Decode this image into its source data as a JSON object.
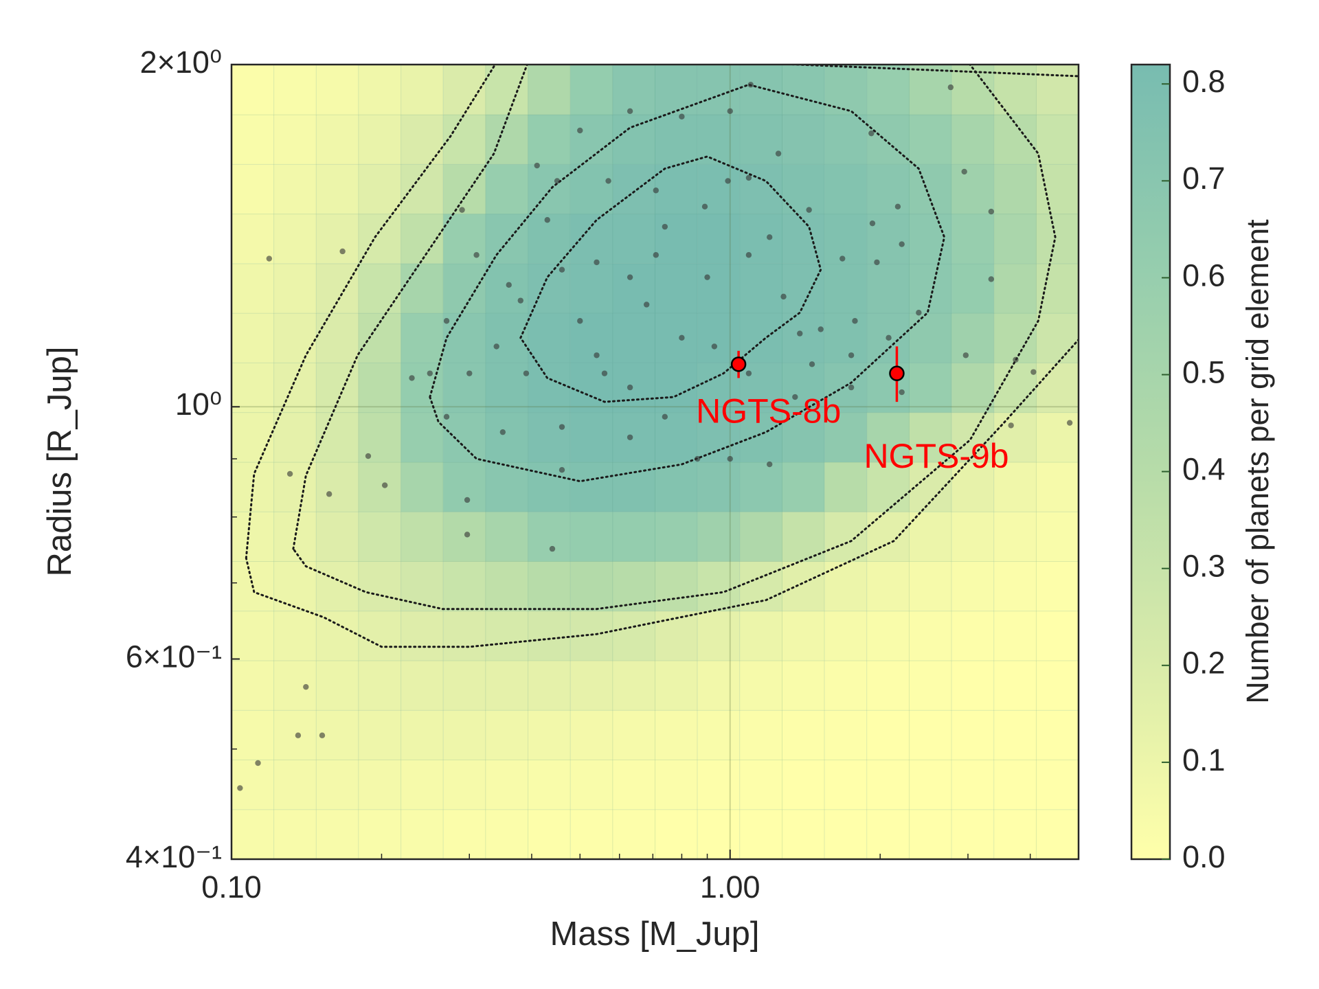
{
  "chart_data": {
    "type": "heatmap",
    "x_label": "Mass [M_Jup]",
    "y_label": "Radius [R_Jup]",
    "colorbar_label": "Number of planets per grid element",
    "log_x": true,
    "log_y": true,
    "grid": true,
    "xlim": [
      0.1,
      5.0
    ],
    "ylim": [
      0.4,
      2.0
    ],
    "xticks": [
      {
        "value": 0.1,
        "label": "0.10"
      },
      {
        "value": 1,
        "label": "1.00"
      }
    ],
    "yticks": [
      {
        "value": 0.4,
        "label": "4×10⁻¹"
      },
      {
        "value": 0.6,
        "label": "6×10⁻¹"
      },
      {
        "value": 1,
        "label": "10⁰"
      },
      {
        "value": 2,
        "label": "2×10⁰"
      }
    ],
    "xminorticks": [
      0.2,
      0.3,
      0.4,
      0.5,
      0.6,
      0.7,
      0.8,
      0.9,
      2,
      3,
      4
    ],
    "yminorticks": [
      0.5,
      0.7,
      0.8,
      0.9
    ],
    "x_bins": [
      0.1,
      0.1216,
      0.1479,
      0.1798,
      0.2187,
      0.2659,
      0.3234,
      0.3933,
      0.4783,
      0.5817,
      0.7071,
      0.8599,
      1.0457,
      1.2717,
      1.5465,
      1.8807,
      2.2871,
      2.7813,
      3.3823,
      4.1132,
      5.0
    ],
    "y_bins": [
      0.4,
      0.4423,
      0.4891,
      0.5408,
      0.598,
      0.6612,
      0.7311,
      0.8084,
      0.8939,
      0.9885,
      1.093,
      1.2086,
      1.3364,
      1.4777,
      1.634,
      1.8068,
      2.0
    ],
    "z": [
      [
        0.04,
        0.04,
        0.04,
        0.03,
        0.03,
        0.02,
        0.02,
        0.01,
        0.01,
        0.01,
        0.0,
        0.0,
        0.0,
        0.0,
        0.0,
        0.0,
        0.0,
        0.0,
        0.0,
        0.0
      ],
      [
        0.05,
        0.06,
        0.06,
        0.06,
        0.05,
        0.05,
        0.04,
        0.03,
        0.03,
        0.02,
        0.02,
        0.01,
        0.01,
        0.0,
        0.0,
        0.0,
        0.0,
        0.0,
        0.0,
        0.0
      ],
      [
        0.05,
        0.07,
        0.08,
        0.09,
        0.09,
        0.09,
        0.08,
        0.07,
        0.06,
        0.05,
        0.04,
        0.03,
        0.02,
        0.01,
        0.01,
        0.0,
        0.0,
        0.0,
        0.0,
        0.0
      ],
      [
        0.06,
        0.08,
        0.1,
        0.12,
        0.13,
        0.14,
        0.14,
        0.14,
        0.13,
        0.12,
        0.1,
        0.07,
        0.05,
        0.03,
        0.02,
        0.01,
        0.01,
        0.0,
        0.0,
        0.0
      ],
      [
        0.07,
        0.09,
        0.12,
        0.15,
        0.18,
        0.2,
        0.22,
        0.24,
        0.24,
        0.22,
        0.18,
        0.14,
        0.1,
        0.07,
        0.05,
        0.03,
        0.02,
        0.01,
        0.01,
        0.0
      ],
      [
        0.08,
        0.1,
        0.15,
        0.2,
        0.25,
        0.3,
        0.35,
        0.4,
        0.42,
        0.4,
        0.36,
        0.3,
        0.22,
        0.16,
        0.1,
        0.07,
        0.05,
        0.03,
        0.02,
        0.01
      ],
      [
        0.09,
        0.12,
        0.18,
        0.26,
        0.35,
        0.42,
        0.5,
        0.6,
        0.62,
        0.62,
        0.6,
        0.55,
        0.45,
        0.32,
        0.22,
        0.15,
        0.1,
        0.07,
        0.05,
        0.03
      ],
      [
        0.1,
        0.13,
        0.2,
        0.32,
        0.5,
        0.64,
        0.7,
        0.74,
        0.76,
        0.76,
        0.74,
        0.72,
        0.68,
        0.6,
        0.4,
        0.3,
        0.2,
        0.13,
        0.08,
        0.05
      ],
      [
        0.1,
        0.14,
        0.22,
        0.36,
        0.6,
        0.68,
        0.74,
        0.78,
        0.8,
        0.8,
        0.8,
        0.78,
        0.76,
        0.72,
        0.66,
        0.5,
        0.35,
        0.25,
        0.16,
        0.1
      ],
      [
        0.1,
        0.14,
        0.22,
        0.38,
        0.62,
        0.7,
        0.76,
        0.8,
        0.82,
        0.82,
        0.82,
        0.8,
        0.78,
        0.76,
        0.72,
        0.68,
        0.6,
        0.45,
        0.3,
        0.2
      ],
      [
        0.09,
        0.13,
        0.2,
        0.35,
        0.6,
        0.7,
        0.76,
        0.8,
        0.82,
        0.82,
        0.82,
        0.82,
        0.8,
        0.78,
        0.76,
        0.72,
        0.66,
        0.55,
        0.4,
        0.28
      ],
      [
        0.08,
        0.11,
        0.18,
        0.3,
        0.5,
        0.66,
        0.74,
        0.78,
        0.8,
        0.82,
        0.82,
        0.82,
        0.8,
        0.78,
        0.76,
        0.72,
        0.68,
        0.62,
        0.45,
        0.32
      ],
      [
        0.06,
        0.09,
        0.14,
        0.22,
        0.35,
        0.6,
        0.7,
        0.76,
        0.79,
        0.8,
        0.82,
        0.82,
        0.8,
        0.78,
        0.76,
        0.72,
        0.68,
        0.6,
        0.48,
        0.34
      ],
      [
        0.04,
        0.07,
        0.1,
        0.16,
        0.25,
        0.4,
        0.6,
        0.7,
        0.74,
        0.78,
        0.8,
        0.8,
        0.78,
        0.76,
        0.74,
        0.7,
        0.66,
        0.55,
        0.45,
        0.32
      ],
      [
        0.03,
        0.05,
        0.08,
        0.12,
        0.2,
        0.3,
        0.45,
        0.62,
        0.7,
        0.74,
        0.76,
        0.76,
        0.75,
        0.73,
        0.7,
        0.66,
        0.6,
        0.5,
        0.4,
        0.3
      ],
      [
        0.02,
        0.03,
        0.05,
        0.08,
        0.12,
        0.2,
        0.3,
        0.45,
        0.62,
        0.7,
        0.72,
        0.72,
        0.72,
        0.7,
        0.66,
        0.6,
        0.5,
        0.4,
        0.32,
        0.25
      ]
    ],
    "colormap": [
      "#ffffaa",
      "#d9ebaa",
      "#b5dba9",
      "#95cdae",
      "#78bcb0"
    ],
    "clim": [
      0,
      0.82
    ],
    "colorbar_ticks": [
      {
        "value": 0,
        "label": "0.0"
      },
      0.1,
      0.2,
      0.3,
      0.4,
      0.5,
      0.6,
      0.7,
      0.8
    ],
    "contours": [
      {
        "x": [
          0.38,
          0.43,
          0.54,
          0.74,
          0.9,
          1.18,
          1.44,
          1.52,
          1.38,
          1.18,
          0.97,
          0.77,
          0.56,
          0.43,
          0.38
        ],
        "y": [
          1.15,
          1.3,
          1.46,
          1.62,
          1.66,
          1.58,
          1.44,
          1.32,
          1.21,
          1.15,
          1.07,
          1.02,
          1.01,
          1.06,
          1.15
        ]
      },
      {
        "x": [
          0.25,
          0.27,
          0.34,
          0.44,
          0.63,
          1.09,
          1.75,
          2.39,
          2.69,
          2.49,
          1.75,
          1.18,
          0.8,
          0.5,
          0.31,
          0.26,
          0.25
        ],
        "y": [
          1.02,
          1.15,
          1.36,
          1.56,
          1.76,
          1.92,
          1.82,
          1.62,
          1.41,
          1.21,
          1.05,
          0.95,
          0.89,
          0.86,
          0.9,
          0.97,
          1.02
        ]
      },
      {
        "x": [
          0.133,
          0.141,
          0.179,
          0.245,
          0.336,
          0.4,
          2.9,
          4.15,
          4.49,
          4.15,
          3.03,
          1.75,
          0.97,
          0.54,
          0.265,
          0.186,
          0.141,
          0.133
        ],
        "y": [
          0.75,
          0.87,
          1.11,
          1.36,
          1.67,
          2.05,
          2.05,
          1.67,
          1.41,
          1.19,
          0.935,
          0.762,
          0.687,
          0.664,
          0.664,
          0.687,
          0.724,
          0.75
        ]
      },
      {
        "x": [
          0.107,
          0.111,
          0.141,
          0.194,
          0.275,
          0.35,
          5.5,
          5.5,
          3.54,
          2.13,
          1.18,
          0.54,
          0.3,
          0.2,
          0.153,
          0.111,
          0.107
        ],
        "y": [
          0.736,
          0.873,
          1.11,
          1.41,
          1.73,
          2.05,
          1.95,
          1.2,
          0.968,
          0.762,
          0.676,
          0.631,
          0.615,
          0.615,
          0.653,
          0.687,
          0.736
        ]
      }
    ],
    "contour_color": "#1a1a1a",
    "points": {
      "color": "#333333",
      "x": [
        0.119,
        0.167,
        0.104,
        0.113,
        0.136,
        0.152,
        0.141,
        0.131,
        0.157,
        0.188,
        0.203,
        0.297,
        0.297,
        4.8,
        3.66,
        4.06,
        3.74,
        2.97,
        3.34,
        3.34,
        2.95,
        2.77,
        1.92,
        1.1,
        1.0,
        0.8,
        0.5,
        0.63,
        0.41,
        0.45,
        0.57,
        0.71,
        0.89,
        0.99,
        1.25,
        1.44,
        1.93,
        2.17,
        2.21,
        1.97,
        1.68,
        1.78,
        2.39,
        0.36,
        0.38,
        0.46,
        0.54,
        0.63,
        0.71,
        0.68,
        0.9,
        1.09,
        1.2,
        1.28,
        1.38,
        1.52,
        1.75,
        2.08,
        0.34,
        0.27,
        0.25,
        0.3,
        0.39,
        0.54,
        0.63,
        0.74,
        1.09,
        1.35,
        2.21,
        0.27,
        0.35,
        0.46,
        0.63,
        0.86,
        1.0,
        1.2,
        0.46,
        0.44,
        0.23,
        0.8,
        0.56,
        0.93,
        1.46,
        1.75,
        0.5,
        0.74,
        1.09,
        0.43,
        0.31,
        0.29
      ],
      "y": [
        1.35,
        1.37,
        0.462,
        0.486,
        0.514,
        0.514,
        0.567,
        0.873,
        0.838,
        0.905,
        0.853,
        0.828,
        0.772,
        0.968,
        0.963,
        1.073,
        1.1,
        1.11,
        1.295,
        1.485,
        1.61,
        1.91,
        1.74,
        1.92,
        1.82,
        1.8,
        1.75,
        1.82,
        1.63,
        1.58,
        1.58,
        1.55,
        1.5,
        1.58,
        1.67,
        1.49,
        1.45,
        1.5,
        1.39,
        1.34,
        1.35,
        1.19,
        1.21,
        1.28,
        1.24,
        1.32,
        1.34,
        1.3,
        1.36,
        1.23,
        1.3,
        1.36,
        1.41,
        1.25,
        1.16,
        1.17,
        1.11,
        1.15,
        1.13,
        1.19,
        1.07,
        1.07,
        1.07,
        1.11,
        1.04,
        0.98,
        1.07,
        1.02,
        1.03,
        0.98,
        0.95,
        0.96,
        0.94,
        0.9,
        0.9,
        0.89,
        0.88,
        0.75,
        1.06,
        1.15,
        1.07,
        1.13,
        1.09,
        1.04,
        1.19,
        1.44,
        1.59,
        1.46,
        1.36,
        1.49
      ]
    },
    "planets": [
      {
        "name": "NGTS-8b",
        "mass": 1.04,
        "radius": 1.09,
        "radius_err": 0.03
      },
      {
        "name": "NGTS-9b",
        "mass": 2.16,
        "radius": 1.07,
        "radius_err": 0.06
      }
    ],
    "planet_color": "#ff0000"
  }
}
